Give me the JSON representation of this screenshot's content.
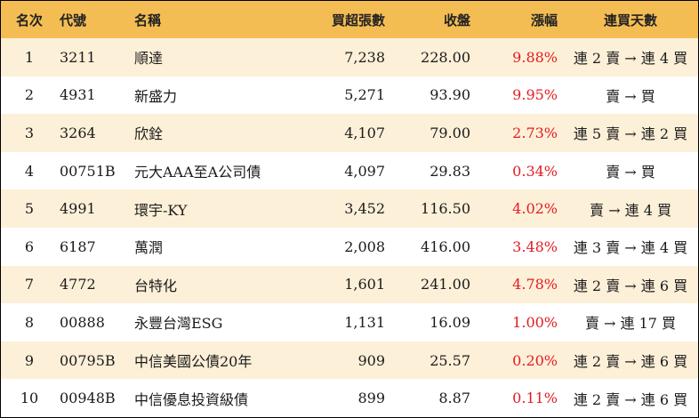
{
  "headers": {
    "rank": "名次",
    "code": "代號",
    "name": "名稱",
    "net_buy": "買超張數",
    "close": "收盤",
    "change_pct": "漲幅",
    "streak": "連買天數"
  },
  "rows": [
    {
      "rank": "1",
      "code": "3211",
      "name": "順達",
      "net_buy": "7,238",
      "close": "228.00",
      "change_pct": "9.88%",
      "streak": "連 2 賣 → 連 4 買"
    },
    {
      "rank": "2",
      "code": "4931",
      "name": "新盛力",
      "net_buy": "5,271",
      "close": "93.90",
      "change_pct": "9.95%",
      "streak": "賣 → 買"
    },
    {
      "rank": "3",
      "code": "3264",
      "name": "欣銓",
      "net_buy": "4,107",
      "close": "79.00",
      "change_pct": "2.73%",
      "streak": "連 5 賣 → 連 2 買"
    },
    {
      "rank": "4",
      "code": "00751B",
      "name": "元大AAA至A公司債",
      "net_buy": "4,097",
      "close": "29.83",
      "change_pct": "0.34%",
      "streak": "賣 → 買"
    },
    {
      "rank": "5",
      "code": "4991",
      "name": "環宇-KY",
      "net_buy": "3,452",
      "close": "116.50",
      "change_pct": "4.02%",
      "streak": "賣 → 連 4 買"
    },
    {
      "rank": "6",
      "code": "6187",
      "name": "萬潤",
      "net_buy": "2,008",
      "close": "416.00",
      "change_pct": "3.48%",
      "streak": "連 3 賣 → 連 4 買"
    },
    {
      "rank": "7",
      "code": "4772",
      "name": "台特化",
      "net_buy": "1,601",
      "close": "241.00",
      "change_pct": "4.78%",
      "streak": "連 2 賣 → 連 6 買"
    },
    {
      "rank": "8",
      "code": "00888",
      "name": "永豐台灣ESG",
      "net_buy": "1,131",
      "close": "16.09",
      "change_pct": "1.00%",
      "streak": "賣 → 連 17 買"
    },
    {
      "rank": "9",
      "code": "00795B",
      "name": "中信美國公債20年",
      "net_buy": "909",
      "close": "25.57",
      "change_pct": "0.20%",
      "streak": "連 2 賣 → 連 6 買"
    },
    {
      "rank": "10",
      "code": "00948B",
      "name": "中信優息投資級債",
      "net_buy": "899",
      "close": "8.87",
      "change_pct": "0.11%",
      "streak": "連 2 賣 → 連 6 買"
    }
  ],
  "colors": {
    "header_bg": "#f4bd53",
    "stripe_bg": "#fdf0d8",
    "change_text": "#e31b23"
  }
}
